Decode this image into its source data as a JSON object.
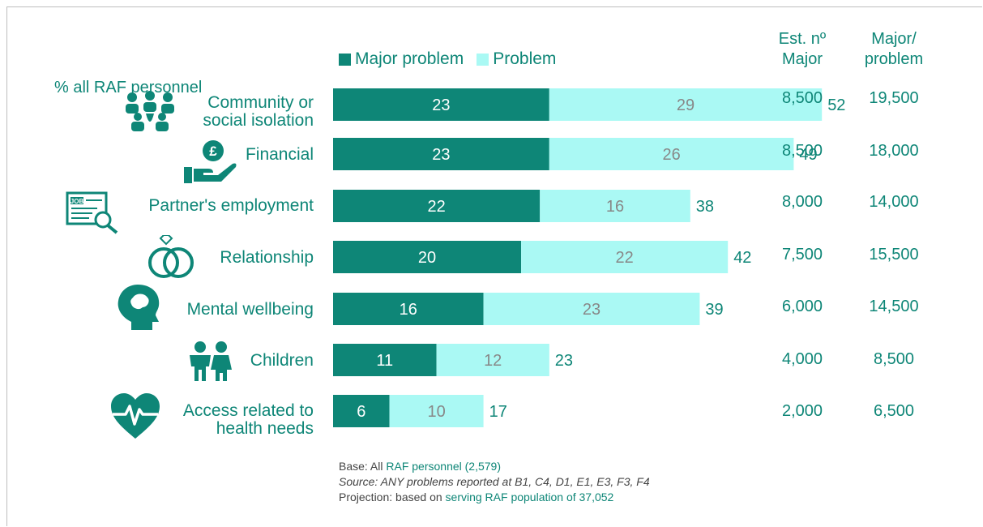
{
  "chart_data": {
    "type": "bar",
    "stacked": true,
    "orientation": "horizontal",
    "title": "% all RAF personnel",
    "legend": [
      "Major problem",
      "Problem"
    ],
    "legend_position": "top",
    "colors": {
      "major": "#0e8677",
      "problem": "#aaf9f4",
      "text_teal": "#0e8677",
      "problem_label": "#888888"
    },
    "xlim": [
      0,
      60
    ],
    "categories": [
      {
        "label_lines": [
          "Community or",
          "social isolation"
        ],
        "icon": "people-group-icon"
      },
      {
        "label_lines": [
          "Financial"
        ],
        "icon": "pound-hand-icon"
      },
      {
        "label_lines": [
          "Partner's employment"
        ],
        "icon": "job-search-icon"
      },
      {
        "label_lines": [
          "Relationship"
        ],
        "icon": "wedding-rings-icon"
      },
      {
        "label_lines": [
          "Mental wellbeing"
        ],
        "icon": "head-brain-icon"
      },
      {
        "label_lines": [
          "Children"
        ],
        "icon": "children-icon"
      },
      {
        "label_lines": [
          "Access related to",
          "health needs"
        ],
        "icon": "heart-pulse-icon"
      }
    ],
    "series": [
      {
        "name": "Major problem",
        "values": [
          23,
          23,
          22,
          20,
          16,
          11,
          6
        ]
      },
      {
        "name": "Problem",
        "values": [
          29,
          26,
          16,
          22,
          23,
          12,
          10
        ]
      }
    ],
    "totals": [
      52,
      49,
      38,
      42,
      39,
      23,
      17
    ],
    "table": {
      "headers": [
        {
          "line1": "Est. nº",
          "line2": "Major"
        },
        {
          "line1": "Major/",
          "line2": "problem"
        }
      ],
      "rows": [
        [
          "8,500",
          "19,500"
        ],
        [
          "8,500",
          "18,000"
        ],
        [
          "8,000",
          "14,000"
        ],
        [
          "7,500",
          "15,500"
        ],
        [
          "6,000",
          "14,500"
        ],
        [
          "4,000",
          "8,500"
        ],
        [
          "2,000",
          "6,500"
        ]
      ]
    }
  },
  "notes": {
    "base_prefix": "Base: All ",
    "base_highlight": "RAF personnel (2,579)",
    "source": "Source: ANY problems reported at B1, C4, D1, E1, E3, F3, F4",
    "projection_prefix": "Projection: based on ",
    "projection_highlight": "serving RAF population of 37,052"
  }
}
